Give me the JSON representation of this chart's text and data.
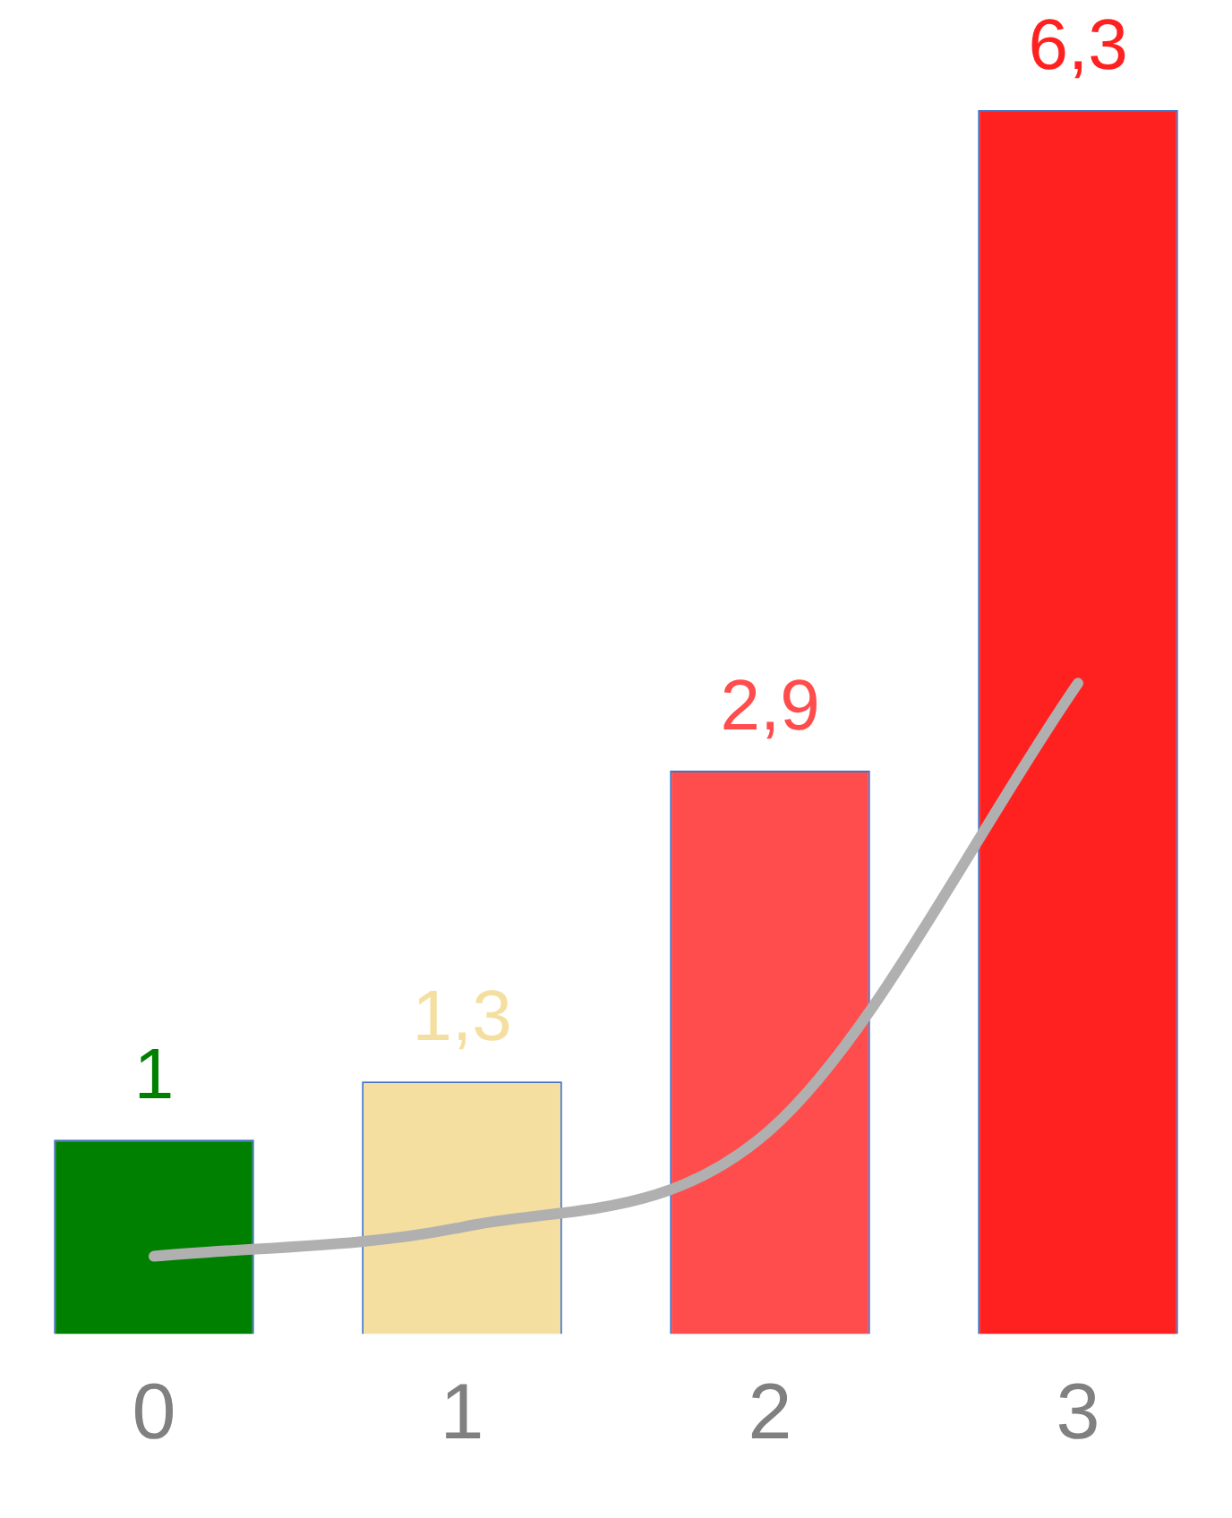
{
  "chart_data": {
    "type": "bar",
    "categories": [
      "0",
      "1",
      "2",
      "3"
    ],
    "series": [
      {
        "values": [
          1,
          1.3,
          2.9,
          6.3
        ],
        "colors": [
          "#008000",
          "#f5dfa0",
          "#ff4c4c",
          "#ff2020"
        ],
        "value_labels": [
          "1",
          "1,3",
          "2,9",
          "6,3"
        ]
      },
      {
        "type": "line",
        "values": [
          0.4,
          0.55,
          1.05,
          3.35
        ],
        "color": "#b0b0b0"
      }
    ],
    "grid": false,
    "legend": false,
    "tick_labels": "x",
    "marker": "none"
  }
}
